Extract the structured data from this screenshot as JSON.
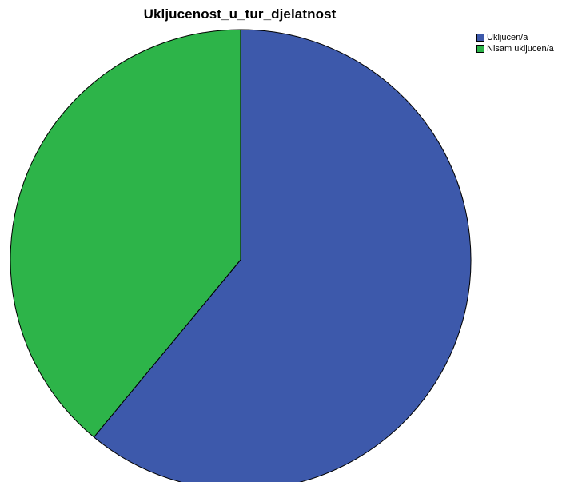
{
  "chart_data": {
    "type": "pie",
    "title": "Ukljucenost_u_tur_djelatnost",
    "categories": [
      "Ukljucen/a",
      "Nisam ukljucen/a"
    ],
    "values": [
      61,
      39
    ],
    "colors": [
      "#3d59ab",
      "#2db449"
    ],
    "start_angle_deg": 0,
    "direction": "clockwise",
    "legend_position": "top-right",
    "edge_color": "#000000"
  }
}
